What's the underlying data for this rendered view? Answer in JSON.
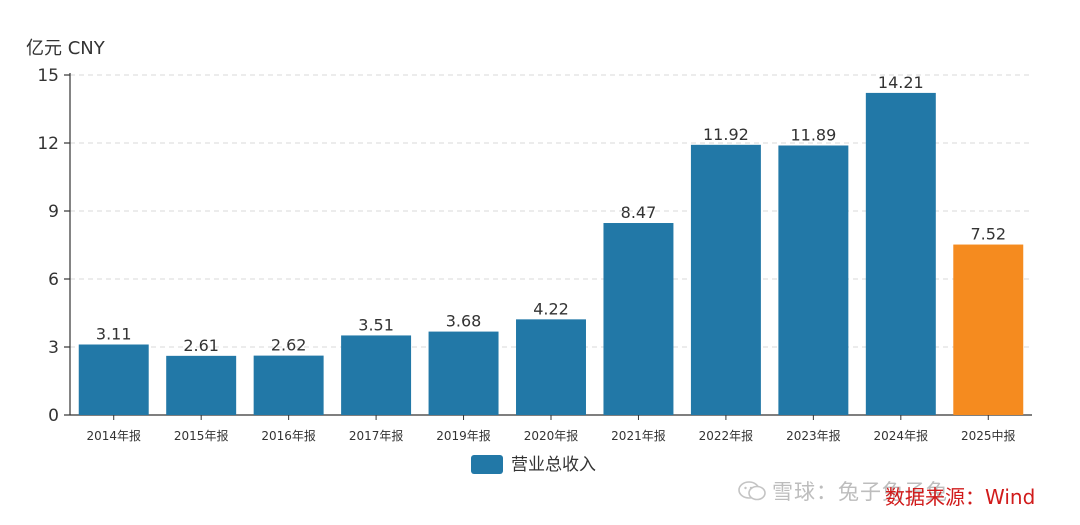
{
  "chart_data": {
    "type": "bar",
    "unit_label": "亿元  CNY",
    "categories": [
      "2014年报",
      "2015年报",
      "2016年报",
      "2017年报",
      "2019年报",
      "2020年报",
      "2021年报",
      "2022年报",
      "2023年报",
      "2024年报",
      "2025中报"
    ],
    "values": [
      3.11,
      2.61,
      2.62,
      3.51,
      3.68,
      4.22,
      8.47,
      11.92,
      11.89,
      14.21,
      7.52
    ],
    "value_labels": [
      "3.11",
      "2.61",
      "2.62",
      "3.51",
      "3.68",
      "4.22",
      "8.47",
      "11.92",
      "11.89",
      "14.21",
      "7.52"
    ],
    "series": [
      {
        "name": "营业总收入"
      }
    ],
    "yticks": [
      "0",
      "3",
      "6",
      "9",
      "12",
      "15"
    ],
    "ylim": [
      0,
      15
    ],
    "grid": true,
    "legend_position": "bottom",
    "colors": {
      "bar": "#2278a7",
      "highlight": "#f58b1f",
      "highlight_index": 10,
      "grid": "#d9d9d9",
      "axis": "#333333"
    }
  },
  "watermark": "雪球：兔子兔子兔",
  "source_note": "数据来源：Wind"
}
